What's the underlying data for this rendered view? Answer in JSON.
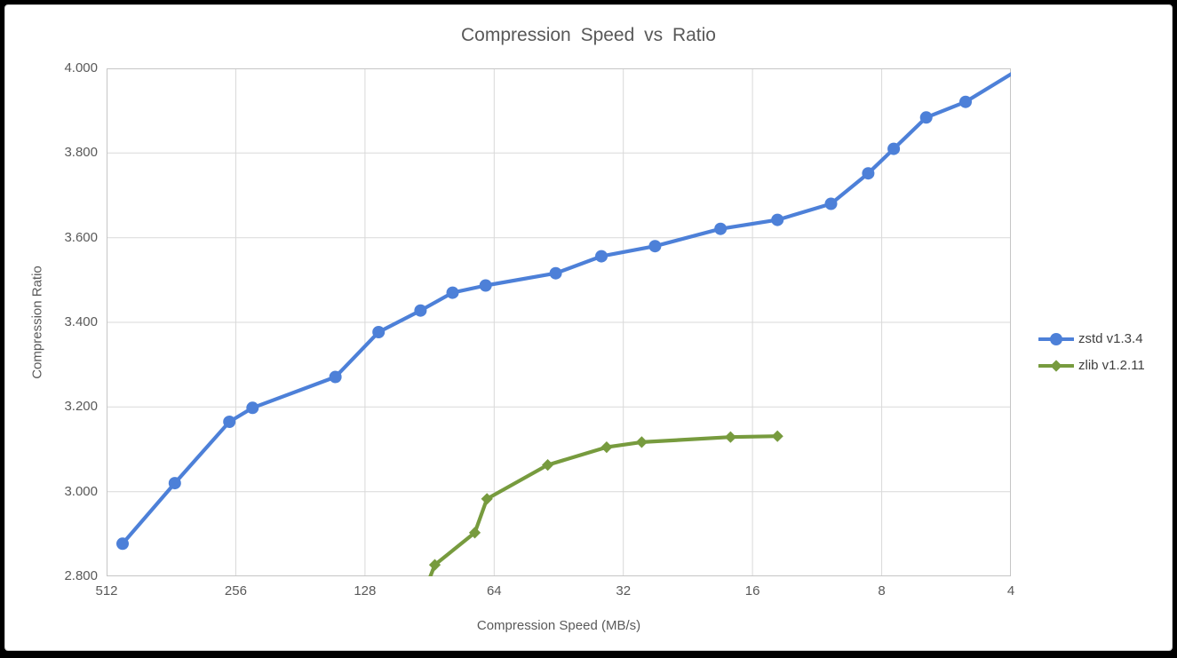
{
  "chart_data": {
    "type": "line",
    "title": "Compression Speed vs Ratio",
    "xlabel": "Compression Speed (MB/s)",
    "ylabel": "Compression Ratio",
    "x_scale": "log2-reversed",
    "x_range": [
      512,
      4
    ],
    "y_range": [
      2.8,
      4.0
    ],
    "grid": true,
    "legend_position": "right",
    "x_ticks": [
      {
        "label": "512",
        "value": 512
      },
      {
        "label": "256",
        "value": 256
      },
      {
        "label": "128",
        "value": 128
      },
      {
        "label": "64",
        "value": 64
      },
      {
        "label": "32",
        "value": 32
      },
      {
        "label": "16",
        "value": 16
      },
      {
        "label": "8",
        "value": 8
      },
      {
        "label": "4",
        "value": 4
      }
    ],
    "y_ticks": [
      {
        "label": "4.000",
        "value": 4.0
      },
      {
        "label": "3.800",
        "value": 3.8
      },
      {
        "label": "3.600",
        "value": 3.6
      },
      {
        "label": "3.400",
        "value": 3.4
      },
      {
        "label": "3.200",
        "value": 3.2
      },
      {
        "label": "3.000",
        "value": 3.0
      },
      {
        "label": "2.800",
        "value": 2.8
      }
    ],
    "series": [
      {
        "name": "zstd v1.3.4",
        "color": "#4d80d8",
        "marker": "circle",
        "points": [
          [
            470,
            2.877
          ],
          [
            355,
            3.02
          ],
          [
            265,
            3.165
          ],
          [
            234,
            3.198
          ],
          [
            150,
            3.271
          ],
          [
            119,
            3.377
          ],
          [
            95,
            3.428
          ],
          [
            80,
            3.47
          ],
          [
            67,
            3.487
          ],
          [
            46,
            3.516
          ],
          [
            36,
            3.556
          ],
          [
            27,
            3.58
          ],
          [
            19,
            3.621
          ],
          [
            14,
            3.642
          ],
          [
            10.5,
            3.68
          ],
          [
            8.6,
            3.752
          ],
          [
            7.5,
            3.81
          ],
          [
            6.3,
            3.884
          ],
          [
            5.1,
            3.921
          ],
          [
            3.8,
            4.0
          ]
        ]
      },
      {
        "name": "zlib v1.2.11",
        "color": "#779b3e",
        "marker": "diamond",
        "points": [
          [
            95,
            2.74
          ],
          [
            88,
            2.827
          ],
          [
            71,
            2.903
          ],
          [
            66.5,
            2.983
          ],
          [
            48,
            3.063
          ],
          [
            35,
            3.105
          ],
          [
            29,
            3.117
          ],
          [
            18,
            3.129
          ],
          [
            14,
            3.131
          ]
        ]
      }
    ],
    "colors": {
      "grid": "#d9d9d9",
      "axis_border": "#c6c6c6",
      "title_text": "#595959",
      "tick_text": "#595959",
      "legend_text": "#3f3f3f",
      "background": "#ffffff",
      "frame": "#000000"
    }
  }
}
